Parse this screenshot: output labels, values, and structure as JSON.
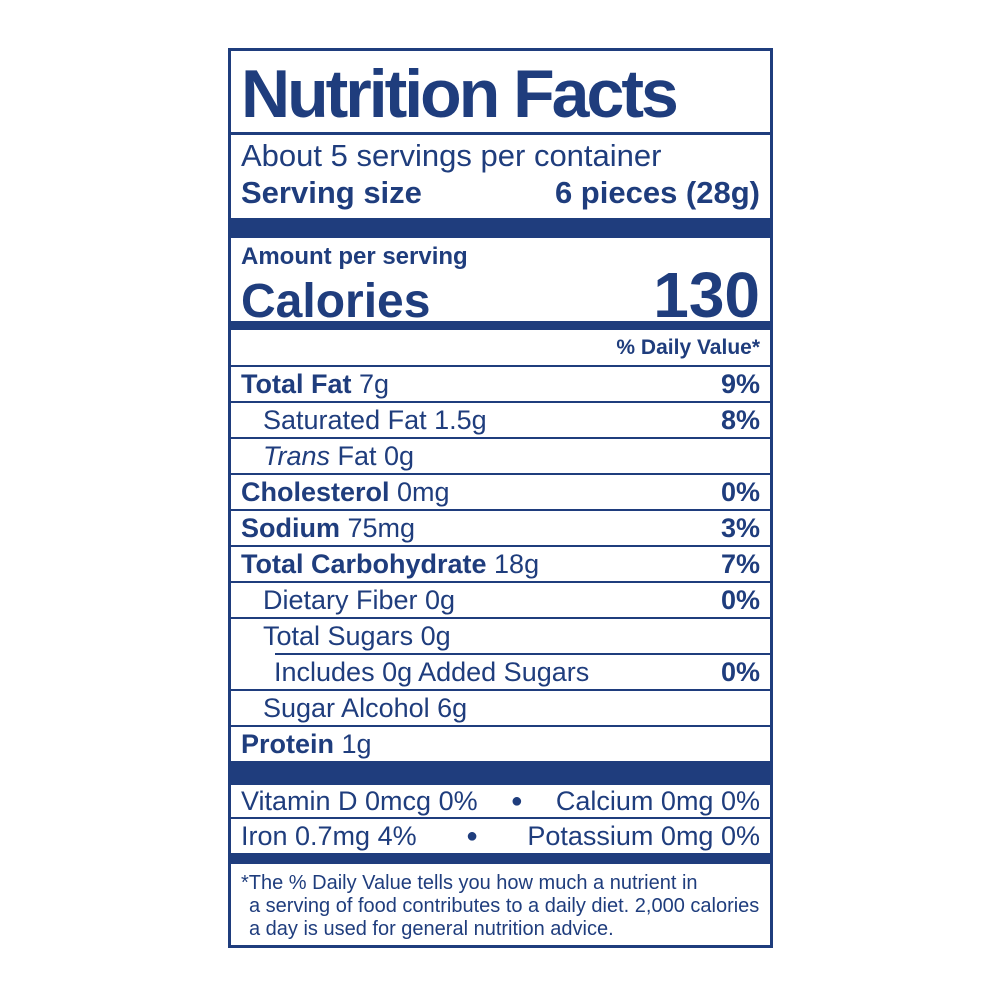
{
  "colors": {
    "primary": "#1f3d7d",
    "background": "#ffffff"
  },
  "label": {
    "title": "Nutrition Facts",
    "servings_per_container": "About 5 servings per container",
    "serving_size": {
      "label": "Serving size",
      "value": "6 pieces (28g)"
    },
    "amount_per_serving": "Amount per serving",
    "calories": {
      "label": "Calories",
      "value": "130"
    },
    "daily_value_header": "% Daily Value*",
    "nutrients": [
      {
        "bold": "Total Fat",
        "italic": "",
        "regular": " 7g",
        "dv": "9%"
      },
      {
        "bold": "",
        "italic": "",
        "regular": "Saturated Fat 1.5g",
        "dv": "8%"
      },
      {
        "bold": "",
        "italic": "Trans",
        "regular": " Fat 0g",
        "dv": ""
      },
      {
        "bold": "Cholesterol",
        "italic": "",
        "regular": " 0mg",
        "dv": "0%"
      },
      {
        "bold": "Sodium",
        "italic": "",
        "regular": " 75mg",
        "dv": "3%"
      },
      {
        "bold": "Total Carbohydrate",
        "italic": "",
        "regular": " 18g",
        "dv": "7%"
      },
      {
        "bold": "",
        "italic": "",
        "regular": "Dietary Fiber 0g",
        "dv": "0%"
      },
      {
        "bold": "",
        "italic": "",
        "regular": "Total Sugars 0g",
        "dv": ""
      },
      {
        "bold": "",
        "italic": "",
        "regular": "Includes 0g Added Sugars",
        "dv": "0%"
      },
      {
        "bold": "",
        "italic": "",
        "regular": "Sugar Alcohol 6g",
        "dv": ""
      },
      {
        "bold": "Protein",
        "italic": "",
        "regular": " 1g",
        "dv": ""
      }
    ],
    "micronutrients": [
      {
        "left": "Vitamin D 0mcg 0%",
        "bullet": "●",
        "right": "Calcium 0mg 0%"
      },
      {
        "left": "Iron 0.7mg 4%",
        "bullet": "●",
        "right": "Potassium 0mg 0%"
      }
    ],
    "footnote_lines": [
      "*The % Daily Value tells you how much a nutrient in",
      "a serving of food contributes to a daily diet. 2,000 calories",
      "a day is used for general nutrition advice."
    ]
  }
}
